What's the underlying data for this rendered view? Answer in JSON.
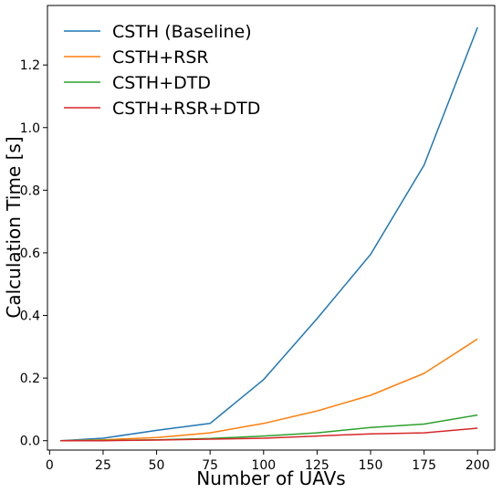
{
  "chart_data": {
    "type": "line",
    "title": "",
    "xlabel": "Number of UAVs",
    "ylabel": "Calculation Time [s]",
    "xlim": [
      -1,
      208
    ],
    "ylim": [
      -0.03,
      1.39
    ],
    "x": [
      5,
      25,
      50,
      75,
      100,
      125,
      150,
      175,
      200
    ],
    "xticks": [
      0,
      25,
      50,
      75,
      100,
      125,
      150,
      175,
      200
    ],
    "xtick_labels": [
      "0",
      "25",
      "50",
      "75",
      "100",
      "125",
      "150",
      "175",
      "200"
    ],
    "yticks": [
      0.0,
      0.2,
      0.4,
      0.6,
      0.8,
      1.0,
      1.2
    ],
    "ytick_labels": [
      "0.0",
      "0.2",
      "0.4",
      "0.6",
      "0.8",
      "1.0",
      "1.2"
    ],
    "grid": false,
    "legend_position": "top-left",
    "series": [
      {
        "name": "CSTH (Baseline)",
        "color": "#1f77b4",
        "values": [
          0.0,
          0.008,
          0.033,
          0.055,
          0.195,
          0.39,
          0.595,
          0.88,
          1.32
        ]
      },
      {
        "name": "CSTH+RSR",
        "color": "#ff7f0e",
        "values": [
          0.0,
          0.003,
          0.01,
          0.025,
          0.055,
          0.095,
          0.145,
          0.215,
          0.325
        ]
      },
      {
        "name": "CSTH+DTD",
        "color": "#2ca02c",
        "values": [
          0.0,
          0.001,
          0.003,
          0.007,
          0.015,
          0.025,
          0.042,
          0.053,
          0.082
        ]
      },
      {
        "name": "CSTH+RSR+DTD",
        "color": "#d62728",
        "values": [
          0.0,
          0.0,
          0.002,
          0.005,
          0.008,
          0.015,
          0.022,
          0.025,
          0.04
        ]
      }
    ]
  }
}
